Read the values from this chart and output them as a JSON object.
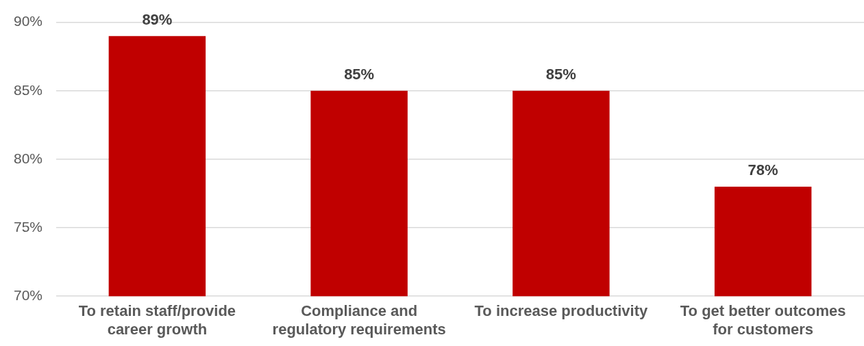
{
  "chart_data": {
    "type": "bar",
    "categories": [
      "To retain staff/provide career growth",
      "Compliance and regulatory requirements",
      "To increase productivity",
      "To get better outcomes for customers"
    ],
    "values": [
      89,
      85,
      85,
      78
    ],
    "color": "#c00000",
    "ylim": [
      70,
      90
    ],
    "yticks": [
      {
        "value": 70,
        "label": "70%"
      },
      {
        "value": 75,
        "label": "75%"
      },
      {
        "value": 80,
        "label": "80%"
      },
      {
        "value": 85,
        "label": "85%"
      },
      {
        "value": 90,
        "label": "90%"
      }
    ],
    "grid": "y",
    "data_labels": true,
    "value_labels": [
      "89%",
      "85%",
      "85%",
      "78%"
    ]
  }
}
